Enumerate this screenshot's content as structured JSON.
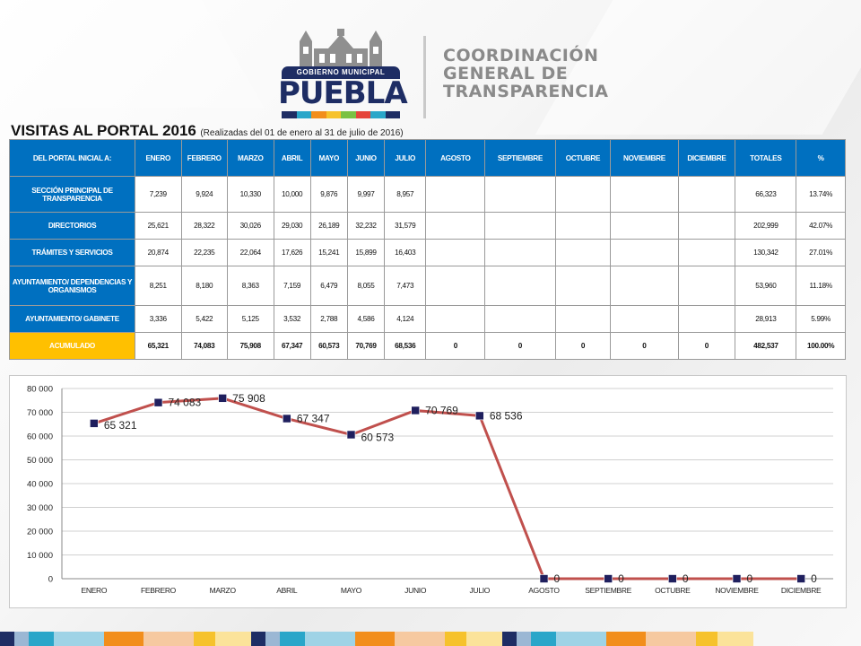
{
  "header": {
    "logo_ribbon": "GOBIERNO MUNICIPAL",
    "logo_word": "PUEBLA",
    "logo_bar_colors": [
      "#1e2d64",
      "#2aa6c9",
      "#f28e1c",
      "#f6c22c",
      "#7ac143",
      "#e5443a",
      "#2aa6c9",
      "#1e2d64"
    ],
    "org_lines": [
      "COORDINACIÓN",
      "GENERAL DE",
      "TRANSPARENCIA"
    ]
  },
  "title": {
    "main": "VISITAS AL PORTAL 2016",
    "subtitle": "(Realizadas del 01 de enero al 31 de julio de 2016)"
  },
  "table": {
    "headers": [
      "DEL PORTAL INICIAL A:",
      "ENERO",
      "FEBRERO",
      "MARZO",
      "ABRIL",
      "MAYO",
      "JUNIO",
      "JULIO",
      "AGOSTO",
      "SEPTIEMBRE",
      "OCTUBRE",
      "NOVIEMBRE",
      "DICIEMBRE",
      "TOTALES",
      "%"
    ],
    "rows": [
      {
        "label": "SECCIÓN PRINCIPAL DE TRANSPARENCIA",
        "values": [
          "7,239",
          "9,924",
          "10,330",
          "10,000",
          "9,876",
          "9,997",
          "8,957",
          "",
          "",
          "",
          "",
          "",
          "66,323",
          "13.74%"
        ]
      },
      {
        "label": "DIRECTORIOS",
        "values": [
          "25,621",
          "28,322",
          "30,026",
          "29,030",
          "26,189",
          "32,232",
          "31,579",
          "",
          "",
          "",
          "",
          "",
          "202,999",
          "42.07%"
        ]
      },
      {
        "label": "TRÁMITES Y SERVICIOS",
        "values": [
          "20,874",
          "22,235",
          "22,064",
          "17,626",
          "15,241",
          "15,899",
          "16,403",
          "",
          "",
          "",
          "",
          "",
          "130,342",
          "27.01%"
        ]
      },
      {
        "label": "AYUNTAMIENTO/ DEPENDENCIAS Y ORGANISMOS",
        "values": [
          "8,251",
          "8,180",
          "8,363",
          "7,159",
          "6,479",
          "8,055",
          "7,473",
          "",
          "",
          "",
          "",
          "",
          "53,960",
          "11.18%"
        ]
      },
      {
        "label": "AYUNTAMIENTO/ GABINETE",
        "values": [
          "3,336",
          "5,422",
          "5,125",
          "3,532",
          "2,788",
          "4,586",
          "4,124",
          "",
          "",
          "",
          "",
          "",
          "28,913",
          "5.99%"
        ]
      }
    ],
    "accumulated": {
      "label": "ACUMULADO",
      "values": [
        "65,321",
        "74,083",
        "75,908",
        "67,347",
        "60,573",
        "70,769",
        "68,536",
        "0",
        "0",
        "0",
        "0",
        "0",
        "482,537",
        "100.00%"
      ]
    }
  },
  "chart_data": {
    "type": "line",
    "categories": [
      "ENERO",
      "FEBRERO",
      "MARZO",
      "ABRIL",
      "MAYO",
      "JUNIO",
      "JULIO",
      "AGOSTO",
      "SEPTIEMBRE",
      "OCTUBRE",
      "NOVIEMBRE",
      "DICIEMBRE"
    ],
    "values": [
      65321,
      74083,
      75908,
      67347,
      60573,
      70769,
      68536,
      0,
      0,
      0,
      0,
      0
    ],
    "data_labels": [
      "65 321",
      "74 083",
      "75 908",
      "67 347",
      "60 573",
      "70 769",
      "68 536",
      "0",
      "0",
      "0",
      "0",
      "0"
    ],
    "yticks": [
      "0",
      "10 000",
      "20 000",
      "30 000",
      "40 000",
      "50 000",
      "60 000",
      "70 000",
      "80 000"
    ],
    "ylim": [
      0,
      80000
    ],
    "grid": true,
    "line_color": "#c0504d",
    "marker_color": "#1f1f5e"
  },
  "footer": {
    "stripe_colors": [
      "#1e2d64",
      "#9bb7d4",
      "#2aa6c9",
      "#9fd3e6",
      "#f28e1c",
      "#f6c9a0",
      "#f6c22c",
      "#fbe39a",
      "#1e2d64",
      "#9bb7d4",
      "#2aa6c9",
      "#9fd3e6",
      "#f28e1c",
      "#f6c9a0",
      "#f6c22c",
      "#fbe39a",
      "#1e2d64",
      "#9bb7d4",
      "#2aa6c9",
      "#9fd3e6",
      "#f28e1c",
      "#f6c9a0",
      "#f6c22c",
      "#fbe39a"
    ]
  }
}
